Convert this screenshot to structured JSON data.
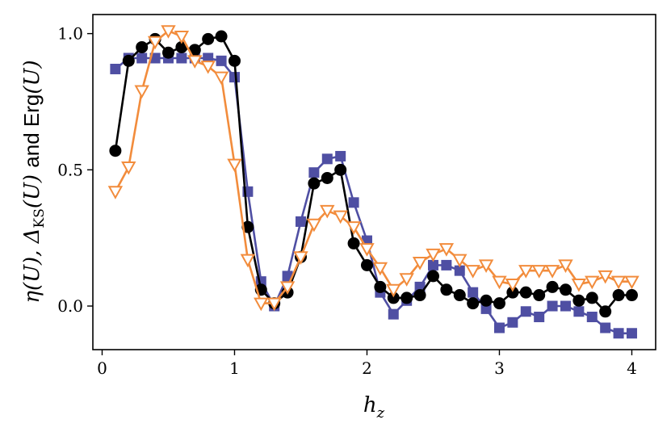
{
  "chart_data": {
    "type": "line",
    "xlabel": "h_z",
    "ylabel": "η(U), Δ_KS(U) and Erg(U)",
    "xlim": [
      -0.07,
      4.18
    ],
    "ylim": [
      -0.16,
      1.07
    ],
    "xticks": [
      0,
      1,
      2,
      3,
      4
    ],
    "xtick_labels": [
      "0",
      "1",
      "2",
      "3",
      "4"
    ],
    "yticks": [
      0.0,
      0.5,
      1.0
    ],
    "ytick_labels": [
      "0.0",
      "0.5",
      "1.0"
    ],
    "grid": false,
    "x": [
      0.1,
      0.2,
      0.3,
      0.4,
      0.5,
      0.6,
      0.7,
      0.8,
      0.9,
      1.0,
      1.1,
      1.2,
      1.3,
      1.4,
      1.5,
      1.6,
      1.7,
      1.8,
      1.9,
      2.0,
      2.1,
      2.2,
      2.3,
      2.4,
      2.5,
      2.6,
      2.7,
      2.8,
      2.9,
      3.0,
      3.1,
      3.2,
      3.3,
      3.4,
      3.5,
      3.6,
      3.7,
      3.8,
      3.9,
      4.0
    ],
    "series": [
      {
        "marker": "square",
        "color": "#4f4fa3",
        "values": [
          0.87,
          0.91,
          0.91,
          0.91,
          0.91,
          0.91,
          0.91,
          0.91,
          0.9,
          0.84,
          0.42,
          0.09,
          0.0,
          0.11,
          0.31,
          0.49,
          0.54,
          0.55,
          0.38,
          0.24,
          0.05,
          -0.03,
          0.02,
          0.07,
          0.15,
          0.15,
          0.13,
          0.05,
          -0.01,
          -0.08,
          -0.06,
          -0.02,
          -0.04,
          0.0,
          0.0,
          -0.02,
          -0.04,
          -0.08,
          -0.1,
          -0.1
        ]
      },
      {
        "marker": "circle",
        "color": "#000000",
        "values": [
          0.57,
          0.9,
          0.95,
          0.98,
          0.93,
          0.95,
          0.94,
          0.98,
          0.99,
          0.9,
          0.29,
          0.06,
          0.01,
          0.05,
          0.18,
          0.45,
          0.47,
          0.5,
          0.23,
          0.15,
          0.07,
          0.03,
          0.03,
          0.04,
          0.11,
          0.06,
          0.04,
          0.01,
          0.02,
          0.01,
          0.05,
          0.05,
          0.04,
          0.07,
          0.06,
          0.02,
          0.03,
          -0.02,
          0.04,
          0.04
        ]
      },
      {
        "marker": "triangle-down-open",
        "color": "#f28c3c",
        "values": [
          0.42,
          0.51,
          0.79,
          0.97,
          1.01,
          0.99,
          0.9,
          0.88,
          0.84,
          0.52,
          0.17,
          0.01,
          0.01,
          0.07,
          0.18,
          0.3,
          0.35,
          0.33,
          0.29,
          0.21,
          0.14,
          0.06,
          0.1,
          0.16,
          0.19,
          0.21,
          0.17,
          0.13,
          0.15,
          0.09,
          0.08,
          0.13,
          0.13,
          0.13,
          0.15,
          0.08,
          0.09,
          0.11,
          0.09,
          0.09
        ]
      }
    ]
  }
}
